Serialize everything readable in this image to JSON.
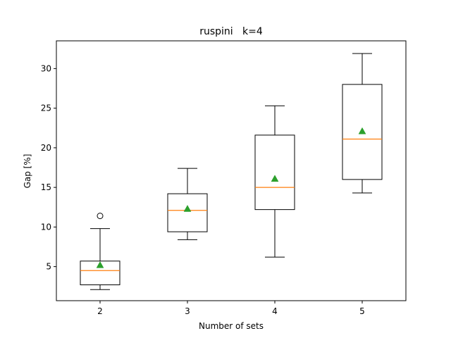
{
  "chart_data": {
    "type": "boxplot",
    "title": "ruspini   k=4",
    "xlabel": "Number of sets",
    "ylabel": "Gap [%]",
    "categories": [
      "2",
      "3",
      "4",
      "5"
    ],
    "ylim": [
      0.7,
      33.5
    ],
    "yticks": [
      5,
      10,
      15,
      20,
      25,
      30
    ],
    "ytick_labels": [
      "5",
      "10",
      "15",
      "20",
      "25",
      "30"
    ],
    "grid": false,
    "boxes": [
      {
        "category": "2",
        "whisker_low": 2.1,
        "q1": 2.7,
        "median": 4.5,
        "q3": 5.7,
        "whisker_high": 9.8,
        "mean": 5.2,
        "outliers": [
          11.4
        ]
      },
      {
        "category": "3",
        "whisker_low": 8.4,
        "q1": 9.4,
        "median": 12.1,
        "q3": 14.2,
        "whisker_high": 17.4,
        "mean": 12.3,
        "outliers": []
      },
      {
        "category": "4",
        "whisker_low": 6.2,
        "q1": 12.2,
        "median": 15.0,
        "q3": 21.6,
        "whisker_high": 25.3,
        "mean": 16.1,
        "outliers": []
      },
      {
        "category": "5",
        "whisker_low": 14.3,
        "q1": 16.0,
        "median": 21.1,
        "q3": 28.0,
        "whisker_high": 31.9,
        "mean": 22.1,
        "outliers": []
      }
    ],
    "colors": {
      "box": "#000000",
      "median": "#ff7f0e",
      "mean": "#2ca02c",
      "outlier": "#000000"
    }
  }
}
